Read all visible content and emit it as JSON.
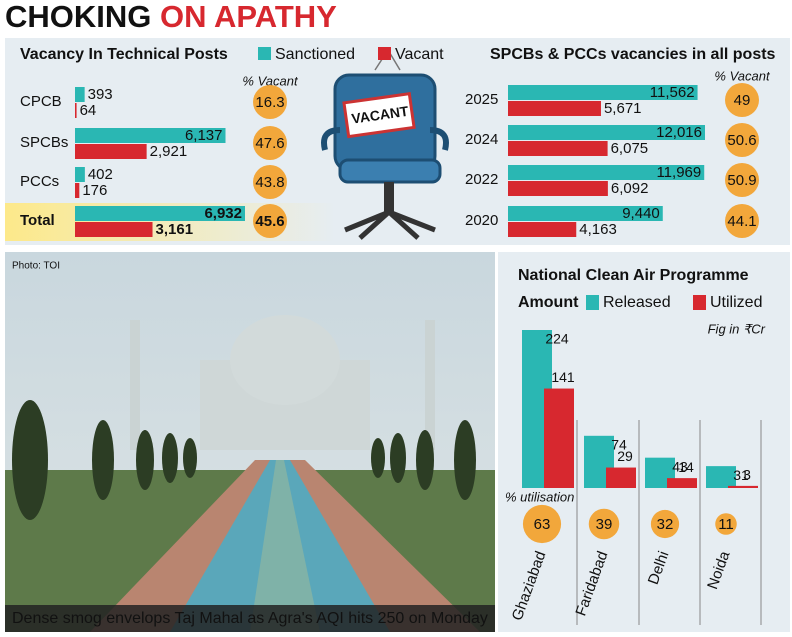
{
  "headline": [
    "CHOKING",
    "ON APATHY"
  ],
  "illustration_label": "VACANT",
  "photo_credit": "Photo: TOI",
  "caption": "Dense smog envelops Taj Mahal as Agra's AQI hits 250 on Monday",
  "chart_data": [
    {
      "type": "hbar",
      "title": "Vacancy In Technical Posts",
      "categories": [
        "CPCB",
        "SPCBs",
        "PCCs",
        "Total"
      ],
      "series": [
        {
          "name": "Sanctioned",
          "color": "#2ab7b3",
          "values": [
            393,
            6137,
            402,
            6932
          ],
          "value_labels": [
            "393",
            "6,137",
            "402",
            "6,932"
          ]
        },
        {
          "name": "Vacant",
          "color": "#d7282f",
          "values": [
            64,
            2921,
            176,
            3161
          ],
          "value_labels": [
            "64",
            "2,921",
            "176",
            "3,161"
          ]
        }
      ],
      "pct_title": "% Vacant",
      "pct_values": [
        16.3,
        47.6,
        43.8,
        45.6
      ],
      "pct_color": "#f2a73b"
    },
    {
      "type": "hbar",
      "title": "SPCBs & PCCs vacancies in all posts",
      "categories": [
        "2025",
        "2024",
        "2022",
        "2020"
      ],
      "series": [
        {
          "color": "#2ab7b3",
          "values": [
            11562,
            12016,
            11969,
            9440
          ],
          "value_labels": [
            "11,562",
            "12,016",
            "11,969",
            "9,440"
          ]
        },
        {
          "color": "#d7282f",
          "values": [
            5671,
            6075,
            6092,
            4163
          ],
          "value_labels": [
            "5,671",
            "6,075",
            "6,092",
            "4,163"
          ]
        }
      ],
      "pct_title": "% Vacant",
      "pct_values": [
        49,
        50.6,
        50.9,
        44.1
      ],
      "pct_color": "#f2a73b"
    },
    {
      "type": "bar",
      "title": "National Clean Air Programme",
      "subtitle": "Amount",
      "note": "Fig in ₹Cr",
      "categories": [
        "Ghaziabad",
        "Faridabad",
        "Delhi",
        "Noida"
      ],
      "series": [
        {
          "name": "Released",
          "color": "#2ab7b3",
          "values": [
            224,
            74,
            43,
            31
          ]
        },
        {
          "name": "Utilized",
          "color": "#d7282f",
          "values": [
            141,
            29,
            14,
            3
          ]
        }
      ],
      "pct_title": "% utilisation",
      "pct_values": [
        63,
        39,
        32,
        11
      ],
      "pct_color": "#f2a73b"
    }
  ]
}
